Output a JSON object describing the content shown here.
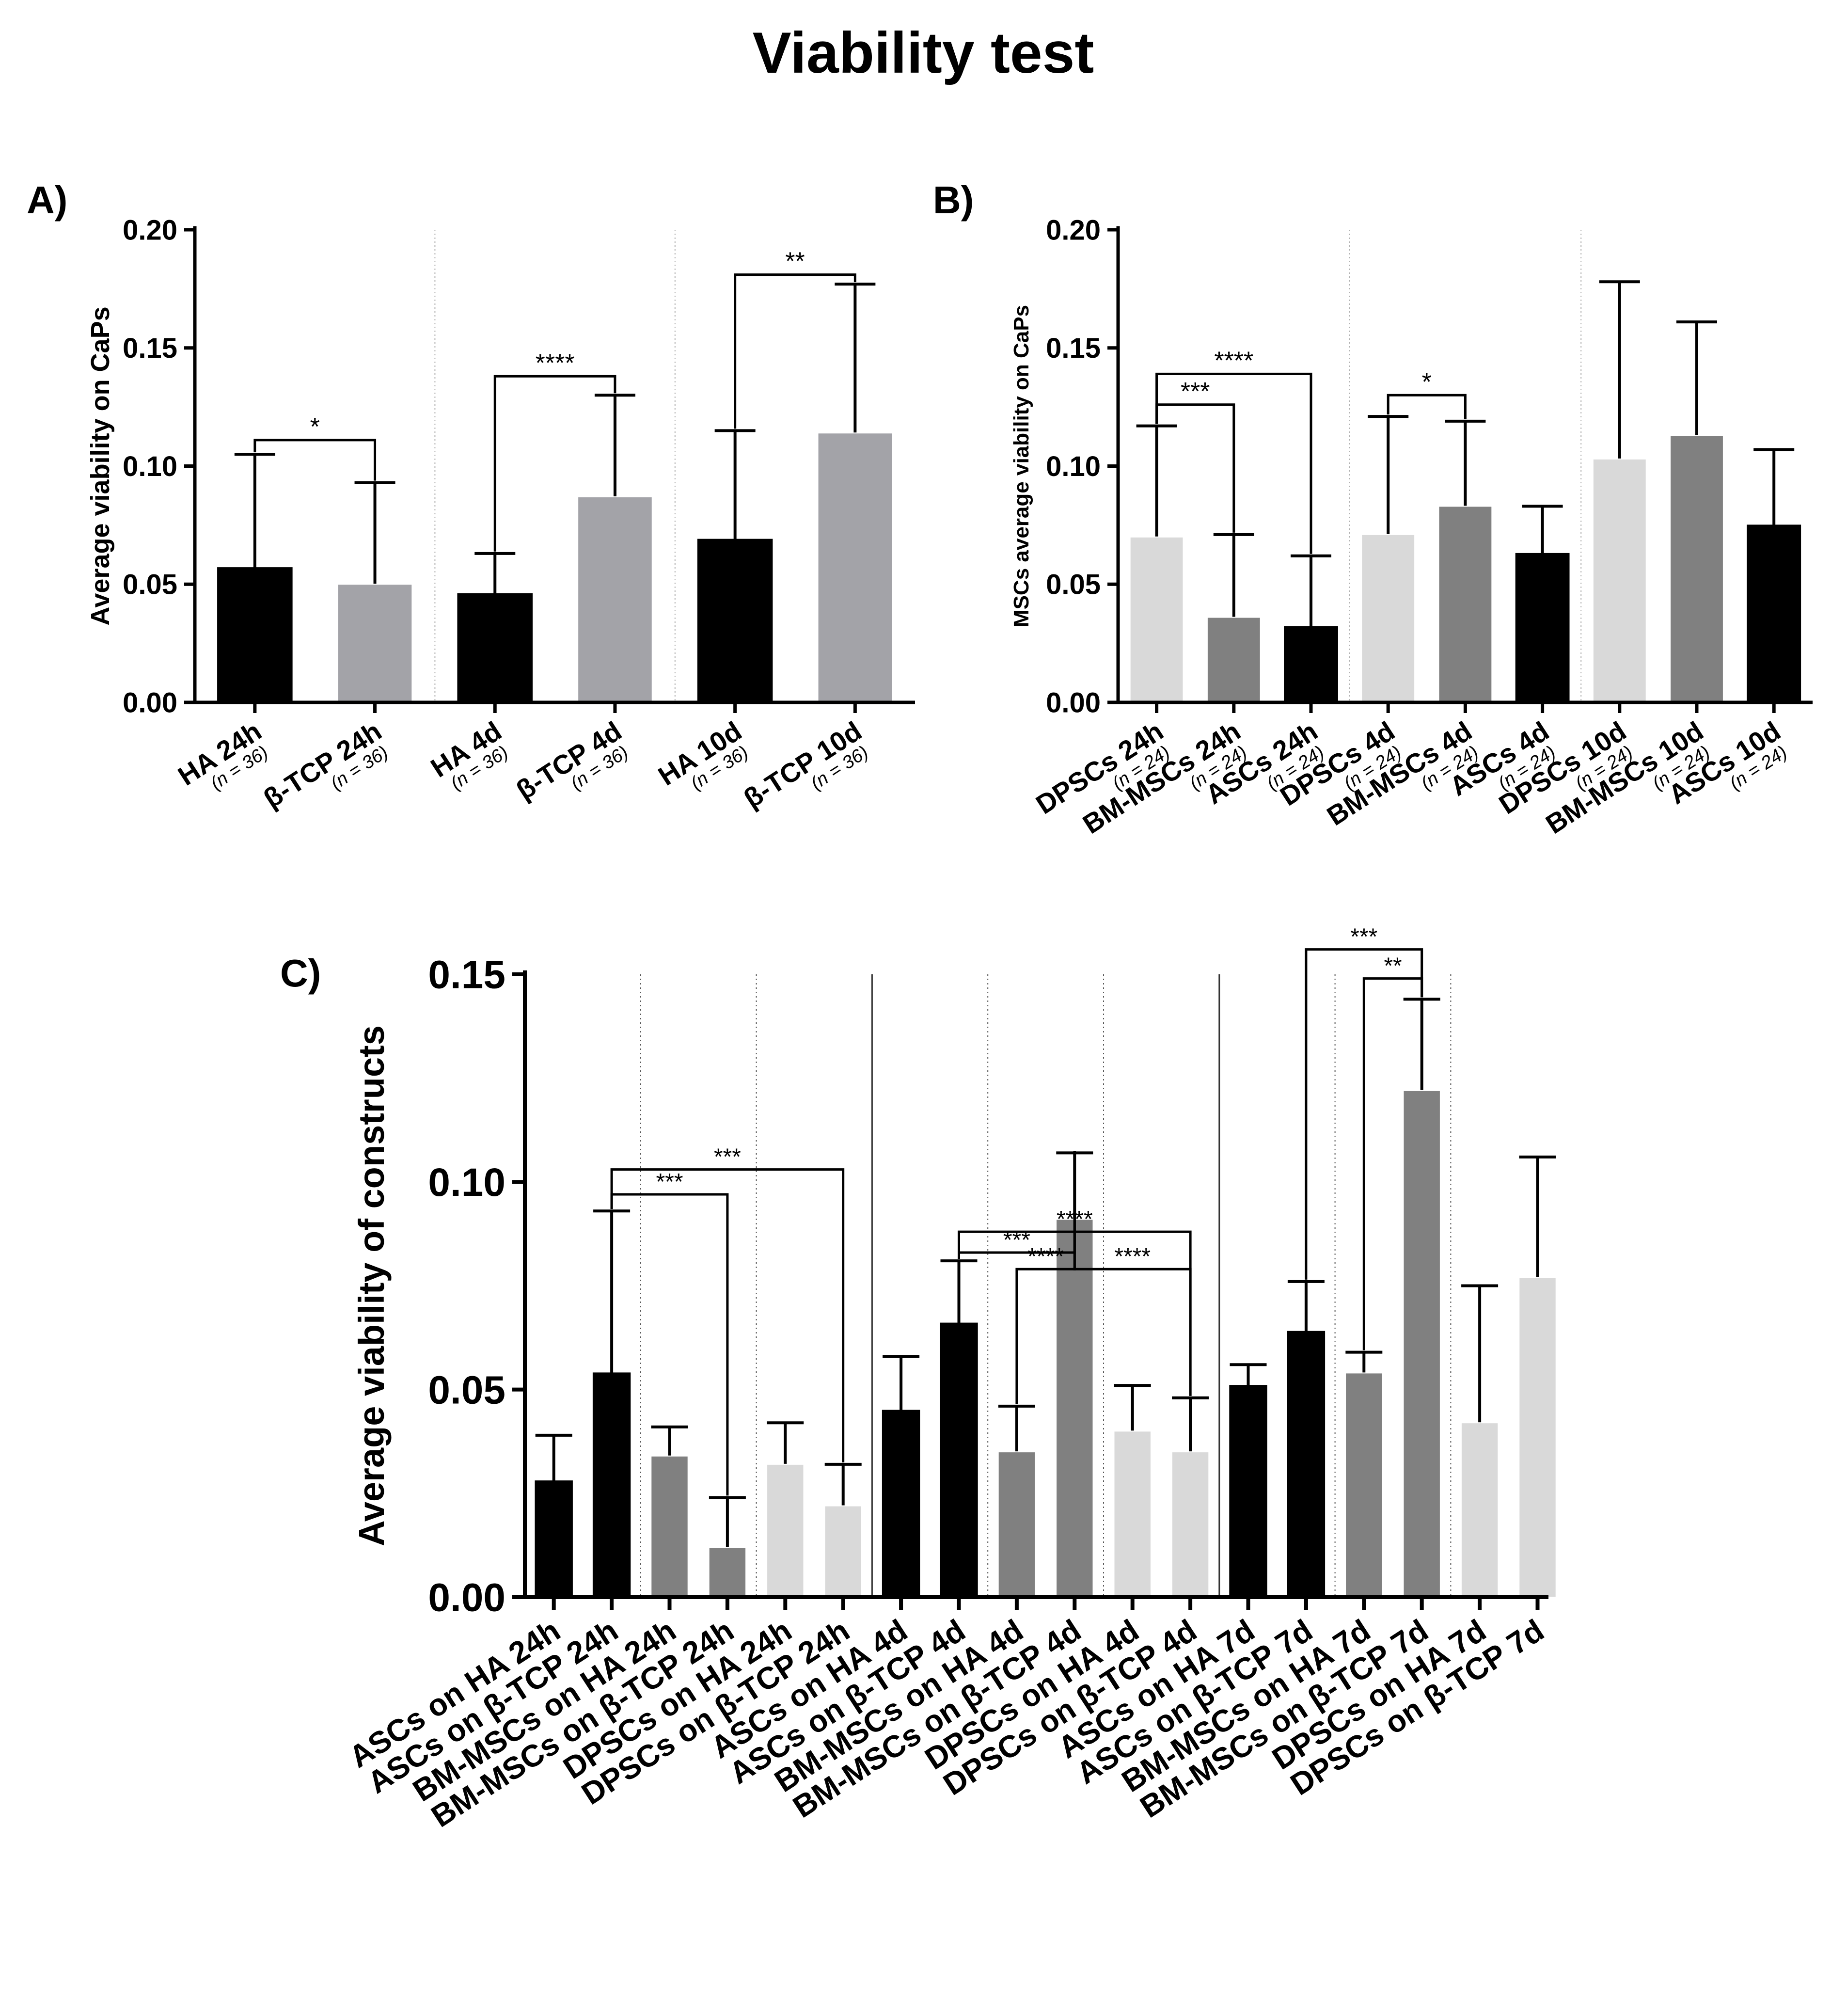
{
  "title": "Viability test",
  "colors": {
    "black": "#000000",
    "dark_gray": "#808080",
    "light_gray": "#d9d9d9",
    "mid_gray": "#a3a3a8"
  },
  "chart_data": [
    {
      "panel_label": "A)",
      "type": "bar",
      "ylabel": "Average viability on CaPs",
      "ylim": [
        0,
        0.2
      ],
      "yticks": [
        "0.00",
        "0.05",
        "0.10",
        "0.15",
        "0.20"
      ],
      "categories": [
        "HA 24h",
        "β-TCP 24h",
        "HA 4d",
        "β-TCP 4d",
        "HA 10d",
        "β-TCP 10d"
      ],
      "sublabels": [
        "(n = 36)",
        "(n = 36)",
        "(n = 36)",
        "(n = 36)",
        "(n = 36)",
        "(n = 36)"
      ],
      "values": [
        0.057,
        0.05,
        0.046,
        0.087,
        0.069,
        0.114
      ],
      "errors": [
        0.048,
        0.043,
        0.017,
        0.043,
        0.046,
        0.063
      ],
      "bar_colors": [
        "#000000",
        "#a3a3a8",
        "#000000",
        "#a3a3a8",
        "#000000",
        "#a3a3a8"
      ],
      "group_separators_after": [
        1,
        3
      ],
      "significance": [
        {
          "from": 0,
          "to": 1,
          "y": 0.111,
          "label": "*"
        },
        {
          "from": 2,
          "to": 3,
          "y": 0.138,
          "label": "****"
        },
        {
          "from": 4,
          "to": 5,
          "y": 0.181,
          "label": "**"
        }
      ]
    },
    {
      "panel_label": "B)",
      "type": "bar",
      "ylabel": "MSCs average viability on CaPs",
      "ylim": [
        0,
        0.2
      ],
      "yticks": [
        "0.00",
        "0.05",
        "0.10",
        "0.15",
        "0.20"
      ],
      "categories": [
        "DPSCs 24h",
        "BM-MSCs 24h",
        "ASCs 24h",
        "DPSCs 4d",
        "BM-MSCs 4d",
        "ASCs 4d",
        "DPSCs 10d",
        "BM-MSCs 10d",
        "ASCs 10d"
      ],
      "sublabels": [
        "(n = 24)",
        "(n = 24)",
        "(n = 24)",
        "(n = 24)",
        "(n = 24)",
        "(n = 24)",
        "(n = 24)",
        "(n = 24)",
        "(n = 24)"
      ],
      "values": [
        0.07,
        0.036,
        0.032,
        0.071,
        0.083,
        0.063,
        0.103,
        0.113,
        0.075
      ],
      "errors": [
        0.047,
        0.035,
        0.03,
        0.05,
        0.036,
        0.02,
        0.075,
        0.048,
        0.032
      ],
      "bar_colors": [
        "#d9d9d9",
        "#808080",
        "#000000",
        "#d9d9d9",
        "#808080",
        "#000000",
        "#d9d9d9",
        "#808080",
        "#000000"
      ],
      "group_separators_after": [
        2,
        5
      ],
      "significance": [
        {
          "from": 0,
          "to": 1,
          "y": 0.126,
          "label": "***"
        },
        {
          "from": 0,
          "to": 2,
          "y": 0.139,
          "label": "****"
        },
        {
          "from": 3,
          "to": 4,
          "y": 0.13,
          "label": "*"
        }
      ]
    },
    {
      "panel_label": "C)",
      "type": "bar",
      "ylabel": "Average viability of constructs",
      "ylim": [
        0,
        0.15
      ],
      "yticks": [
        "0.00",
        "0.05",
        "0.10",
        "0.15"
      ],
      "categories": [
        "ASCs on HA 24h",
        "ASCs on β-TCP 24h",
        "BM-MSCs on HA 24h",
        "BM-MSCs on β-TCP 24h",
        "DPSCs on HA 24h",
        "DPSCs on β-TCP 24h",
        "ASCs on HA 4d",
        "ASCs on β-TCP 4d",
        "BM-MSCs on HA 4d",
        "BM-MSCs on β-TCP 4d",
        "DPSCs on HA 4d",
        "DPSCs on β-TCP 4d",
        "ASCs on HA 7d",
        "ASCs on β-TCP 7d",
        "BM-MSCs on HA 7d",
        "BM-MSCs on β-TCP 7d",
        "DPSCs on HA 7d",
        "DPSCs on β-TCP 7d"
      ],
      "values": [
        0.028,
        0.054,
        0.034,
        0.012,
        0.032,
        0.022,
        0.045,
        0.066,
        0.035,
        0.091,
        0.04,
        0.035,
        0.051,
        0.064,
        0.054,
        0.122,
        0.042,
        0.077
      ],
      "errors": [
        0.011,
        0.039,
        0.007,
        0.012,
        0.01,
        0.01,
        0.013,
        0.015,
        0.011,
        0.016,
        0.011,
        0.013,
        0.005,
        0.012,
        0.005,
        0.022,
        0.033,
        0.029
      ],
      "bar_colors": [
        "#000000",
        "#000000",
        "#808080",
        "#808080",
        "#d9d9d9",
        "#d9d9d9",
        "#000000",
        "#000000",
        "#808080",
        "#808080",
        "#d9d9d9",
        "#d9d9d9",
        "#000000",
        "#000000",
        "#808080",
        "#808080",
        "#d9d9d9",
        "#d9d9d9"
      ],
      "solid_separators_after": [
        5,
        11
      ],
      "dotted_separators_after": [
        1,
        3,
        7,
        9,
        13,
        15
      ],
      "significance": [
        {
          "from": 1,
          "to": 3,
          "y": 0.097,
          "label": "***"
        },
        {
          "from": 1,
          "to": 5,
          "y": 0.103,
          "label": "***"
        },
        {
          "from": 7,
          "to": 9,
          "y": 0.083,
          "label": "***"
        },
        {
          "from": 8,
          "to": 9,
          "y": 0.079,
          "label": "****"
        },
        {
          "from": 9,
          "to": 11,
          "y": 0.079,
          "label": "****"
        },
        {
          "from": 7,
          "to": 11,
          "y": 0.088,
          "label": "****"
        },
        {
          "from": 13,
          "to": 15,
          "y": 0.156,
          "label": "***"
        },
        {
          "from": 14,
          "to": 15,
          "y": 0.149,
          "label": "**"
        }
      ]
    }
  ]
}
